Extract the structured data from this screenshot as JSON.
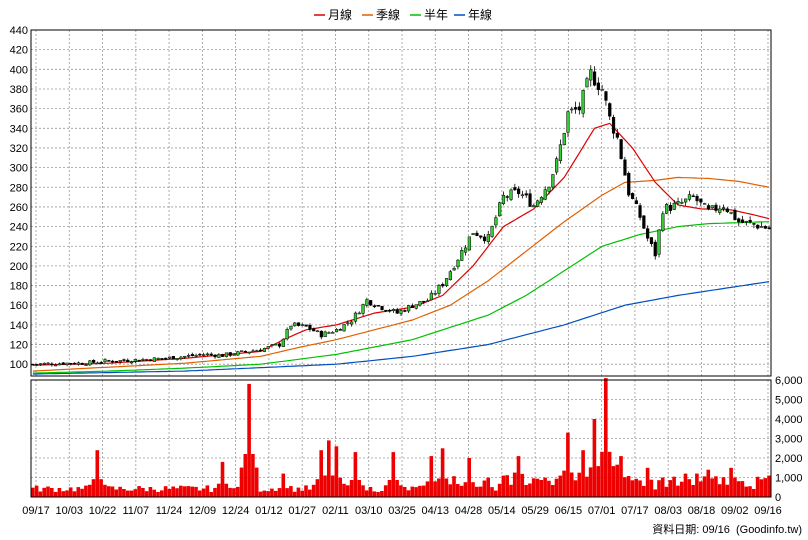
{
  "legend": [
    {
      "label": "月線",
      "color": "#dd0000"
    },
    {
      "label": "季線",
      "color": "#e06000"
    },
    {
      "label": "半年",
      "color": "#00c000"
    },
    {
      "label": "年線",
      "color": "#0050c0"
    }
  ],
  "footer": "資料日期: 09/16  (Goodinfo.tw)",
  "chart_data": [
    {
      "type": "candlestick",
      "grid": true,
      "ylim": [
        88,
        440
      ],
      "y_ticks": [
        100,
        120,
        140,
        160,
        180,
        200,
        220,
        240,
        260,
        280,
        300,
        320,
        340,
        360,
        380,
        400,
        420,
        440
      ],
      "x_tick_labels": [
        "09/17",
        "10/03",
        "10/22",
        "11/07",
        "11/24",
        "12/09",
        "12/24",
        "01/12",
        "01/27",
        "02/11",
        "03/10",
        "03/25",
        "04/13",
        "04/28",
        "05/14",
        "05/29",
        "06/15",
        "07/01",
        "07/17",
        "08/03",
        "08/18",
        "09/02",
        "09/16"
      ],
      "close_anchors": [
        [
          0,
          100
        ],
        [
          8,
          101
        ],
        [
          13,
          101
        ],
        [
          19,
          103
        ],
        [
          25,
          104
        ],
        [
          30,
          105
        ],
        [
          35,
          106
        ],
        [
          40,
          108
        ],
        [
          45,
          110
        ],
        [
          50,
          109
        ],
        [
          55,
          112
        ],
        [
          60,
          115
        ],
        [
          65,
          120
        ],
        [
          68,
          140
        ],
        [
          72,
          138
        ],
        [
          76,
          130
        ],
        [
          80,
          135
        ],
        [
          84,
          145
        ],
        [
          88,
          165
        ],
        [
          92,
          158
        ],
        [
          96,
          152
        ],
        [
          100,
          160
        ],
        [
          104,
          165
        ],
        [
          108,
          182
        ],
        [
          112,
          208
        ],
        [
          116,
          235
        ],
        [
          120,
          228
        ],
        [
          124,
          270
        ],
        [
          128,
          275
        ],
        [
          132,
          262
        ],
        [
          136,
          285
        ],
        [
          138,
          305
        ],
        [
          141,
          355
        ],
        [
          144,
          360
        ],
        [
          147,
          395
        ],
        [
          150,
          380
        ],
        [
          152,
          350
        ],
        [
          154,
          330
        ],
        [
          157,
          275
        ],
        [
          160,
          250
        ],
        [
          162,
          228
        ],
        [
          164,
          212
        ],
        [
          166,
          258
        ],
        [
          170,
          262
        ],
        [
          174,
          270
        ],
        [
          178,
          255
        ],
        [
          182,
          262
        ],
        [
          186,
          245
        ],
        [
          190,
          242
        ],
        [
          194,
          238
        ]
      ],
      "series": [
        {
          "name": "月線",
          "values": [
            [
              0,
              99
            ],
            [
              20,
              101
            ],
            [
              40,
              106
            ],
            [
              60,
              113
            ],
            [
              66,
              125
            ],
            [
              72,
              135
            ],
            [
              80,
              140
            ],
            [
              90,
              152
            ],
            [
              100,
              158
            ],
            [
              108,
              170
            ],
            [
              116,
              200
            ],
            [
              124,
              240
            ],
            [
              132,
              258
            ],
            [
              140,
              290
            ],
            [
              148,
              340
            ],
            [
              152,
              345
            ],
            [
              158,
              320
            ],
            [
              164,
              285
            ],
            [
              170,
              262
            ],
            [
              176,
              258
            ],
            [
              184,
              257
            ],
            [
              190,
              252
            ],
            [
              194,
              248
            ]
          ]
        },
        {
          "name": "季線",
          "values": [
            [
              0,
              93
            ],
            [
              20,
              97
            ],
            [
              40,
              101
            ],
            [
              60,
              108
            ],
            [
              70,
              117
            ],
            [
              80,
              125
            ],
            [
              90,
              135
            ],
            [
              100,
              145
            ],
            [
              110,
              160
            ],
            [
              120,
              185
            ],
            [
              130,
              215
            ],
            [
              140,
              245
            ],
            [
              150,
              272
            ],
            [
              156,
              285
            ],
            [
              164,
              287
            ],
            [
              170,
              290
            ],
            [
              178,
              289
            ],
            [
              186,
              286
            ],
            [
              194,
              280
            ]
          ]
        },
        {
          "name": "半年",
          "values": [
            [
              0,
              91
            ],
            [
              20,
              93
            ],
            [
              40,
              96
            ],
            [
              60,
              100
            ],
            [
              80,
              110
            ],
            [
              100,
              125
            ],
            [
              120,
              150
            ],
            [
              130,
              170
            ],
            [
              140,
              195
            ],
            [
              150,
              220
            ],
            [
              160,
              232
            ],
            [
              170,
              240
            ],
            [
              178,
              243
            ],
            [
              186,
              244
            ],
            [
              194,
              245
            ]
          ]
        },
        {
          "name": "年線",
          "values": [
            [
              0,
              90
            ],
            [
              40,
              93
            ],
            [
              80,
              100
            ],
            [
              100,
              108
            ],
            [
              120,
              120
            ],
            [
              140,
              140
            ],
            [
              156,
              160
            ],
            [
              170,
              170
            ],
            [
              194,
              184
            ]
          ]
        }
      ]
    },
    {
      "type": "bar",
      "ylim": [
        0,
        6000
      ],
      "y_ticks": [
        0,
        1000,
        2000,
        3000,
        4000,
        5000,
        6000
      ],
      "y_tick_labels": [
        "0",
        "1,000",
        "2,000",
        "3,000",
        "4,000",
        "5,000",
        "6,000"
      ],
      "volume_spikes": [
        [
          17,
          2400
        ],
        [
          50,
          1800
        ],
        [
          57,
          5800
        ],
        [
          66,
          1200
        ],
        [
          76,
          2400
        ],
        [
          78,
          2900
        ],
        [
          80,
          2600
        ],
        [
          85,
          2300
        ],
        [
          95,
          2300
        ],
        [
          105,
          2100
        ],
        [
          108,
          2500
        ],
        [
          115,
          2000
        ],
        [
          128,
          2100
        ],
        [
          141,
          3300
        ],
        [
          145,
          2400
        ],
        [
          148,
          4000
        ],
        [
          151,
          6100
        ],
        [
          155,
          2100
        ],
        [
          162,
          1500
        ],
        [
          166,
          1000
        ],
        [
          172,
          1200
        ],
        [
          178,
          1400
        ],
        [
          184,
          1500
        ]
      ]
    }
  ]
}
